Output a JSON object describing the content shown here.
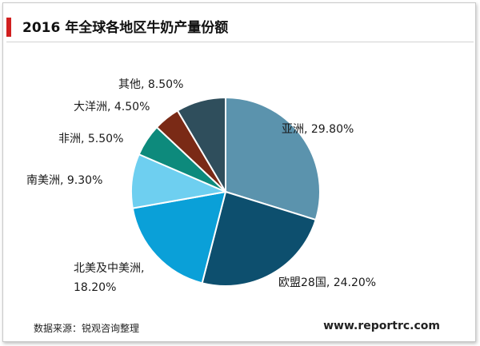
{
  "title": "2016 年全球各地区牛奶产量份额",
  "accent_color": "#d11f1f",
  "source": "数据来源：锐观咨询整理",
  "website": "www.reportrc.com",
  "chart_data": {
    "type": "pie",
    "title": "2016 年全球各地区牛奶产量份额",
    "slices": [
      {
        "label": "亚洲",
        "value": 29.8,
        "text": "亚洲, 29.80%",
        "color": "#5b93ad"
      },
      {
        "label": "欧盟28国",
        "value": 24.2,
        "text": "欧盟28国, 24.20%",
        "color": "#0d4f6e"
      },
      {
        "label": "北美及中美洲",
        "value": 18.2,
        "text": "北美及中美洲,\n18.20%",
        "color": "#0aa0d8"
      },
      {
        "label": "南美洲",
        "value": 9.3,
        "text": "南美洲, 9.30%",
        "color": "#6ecff0"
      },
      {
        "label": "非洲",
        "value": 5.5,
        "text": "非洲, 5.50%",
        "color": "#0d8a7c"
      },
      {
        "label": "大洋洲",
        "value": 4.5,
        "text": "大洋洲, 4.50%",
        "color": "#7a2a16"
      },
      {
        "label": "其他",
        "value": 8.5,
        "text": "其他, 8.50%",
        "color": "#2f4e5c"
      }
    ],
    "start_angle": "12 o'clock",
    "direction": "clockwise",
    "legend": "none",
    "data_labels": "outside"
  }
}
